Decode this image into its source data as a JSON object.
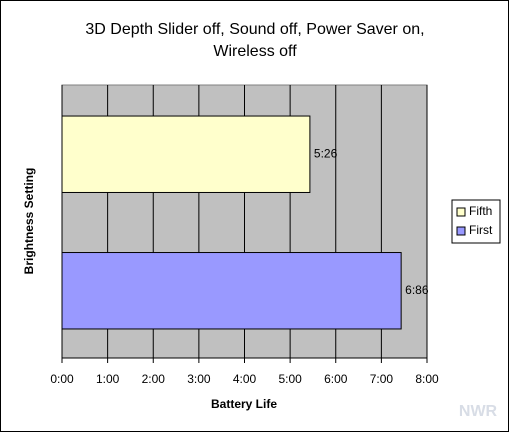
{
  "chart_data": {
    "type": "barh",
    "title_lines": [
      "3D Depth Slider off, Sound off, Power Saver on,",
      "Wireless off"
    ],
    "x_label": "Battery Life",
    "y_label": "Brightness Setting",
    "categories": [
      "Fifth",
      "First"
    ],
    "values": [
      326,
      446
    ],
    "value_labels": [
      "5:26",
      "6:86"
    ],
    "colors": [
      "#ffffcc",
      "#9999ff"
    ],
    "xlim": [
      0,
      480
    ],
    "xticks": [
      {
        "value": 0,
        "label": "0:00"
      },
      {
        "value": 60,
        "label": "1:00"
      },
      {
        "value": 120,
        "label": "2:00"
      },
      {
        "value": 180,
        "label": "3:00"
      },
      {
        "value": 240,
        "label": "4:00"
      },
      {
        "value": 300,
        "label": "5:00"
      },
      {
        "value": 360,
        "label": "6:00"
      },
      {
        "value": 420,
        "label": "7:00"
      },
      {
        "value": 480,
        "label": "8:00"
      }
    ],
    "grid": true,
    "legend": "right",
    "plot_background": "#c0c0c0",
    "watermark": "NWR"
  }
}
